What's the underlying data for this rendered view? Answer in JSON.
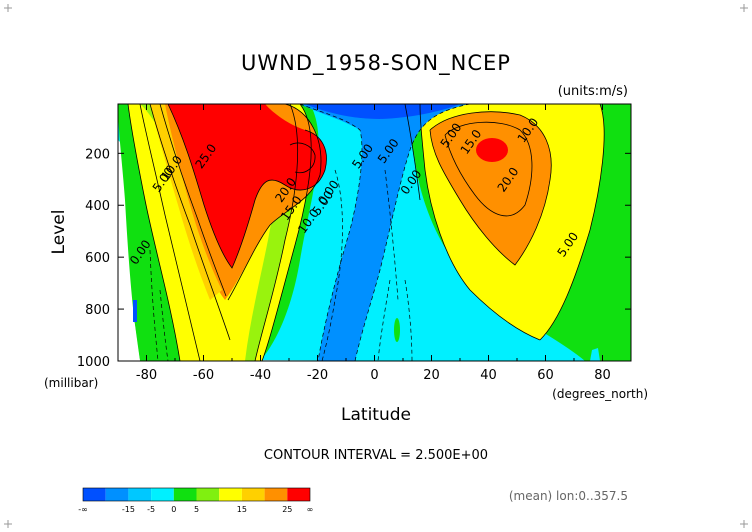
{
  "chart_data": {
    "type": "contour",
    "title": "UWND_1958-SON_NCEP",
    "units": "(units:m/s)",
    "xlabel": "Latitude",
    "xunits": "(degrees_north)",
    "ylabel": "Level",
    "yunits": "(millibar)",
    "xlim": [
      -90,
      90
    ],
    "ylim": [
      1000,
      10
    ],
    "y_inverted": true,
    "x_ticks": [
      -80,
      -60,
      -40,
      -20,
      0,
      20,
      40,
      60,
      80
    ],
    "y_ticks": [
      200,
      400,
      600,
      800,
      1000
    ],
    "contour_interval_text": "CONTOUR INTERVAL = 2.500E+00",
    "footer_note": "(mean) lon:0..357.5",
    "contour_labels": [
      {
        "text": "25.0",
        "x": -58,
        "y": 220
      },
      {
        "text": "10.0",
        "x": -70,
        "y": 265
      },
      {
        "text": "5.00",
        "x": -73,
        "y": 310
      },
      {
        "text": "0.00",
        "x": -81,
        "y": 590
      },
      {
        "text": "20.0",
        "x": -30,
        "y": 350
      },
      {
        "text": "15.0",
        "x": -28,
        "y": 420
      },
      {
        "text": "10.0",
        "x": -22,
        "y": 470
      },
      {
        "text": "5.00",
        "x": -17,
        "y": 400
      },
      {
        "text": "0.00",
        "x": -15,
        "y": 360
      },
      {
        "text": "5.00",
        "x": -3,
        "y": 220
      },
      {
        "text": "5.00",
        "x": 6,
        "y": 200
      },
      {
        "text": "0.00",
        "x": 14,
        "y": 320
      },
      {
        "text": "5.00",
        "x": 28,
        "y": 140
      },
      {
        "text": "15.0",
        "x": 35,
        "y": 165
      },
      {
        "text": "10.0",
        "x": 55,
        "y": 120
      },
      {
        "text": "20.0",
        "x": 48,
        "y": 310
      },
      {
        "text": "5.00",
        "x": 69,
        "y": 560
      }
    ],
    "colorbar": {
      "colors": [
        "#0050ff",
        "#0090ff",
        "#00c8ff",
        "#00f0ff",
        "#10e010",
        "#80f010",
        "#ffff00",
        "#ffd000",
        "#ff9000",
        "#ff0000"
      ],
      "labels": [
        "-∞",
        "-15",
        "-5",
        "0",
        "5",
        "15",
        "25",
        "∞"
      ]
    }
  }
}
